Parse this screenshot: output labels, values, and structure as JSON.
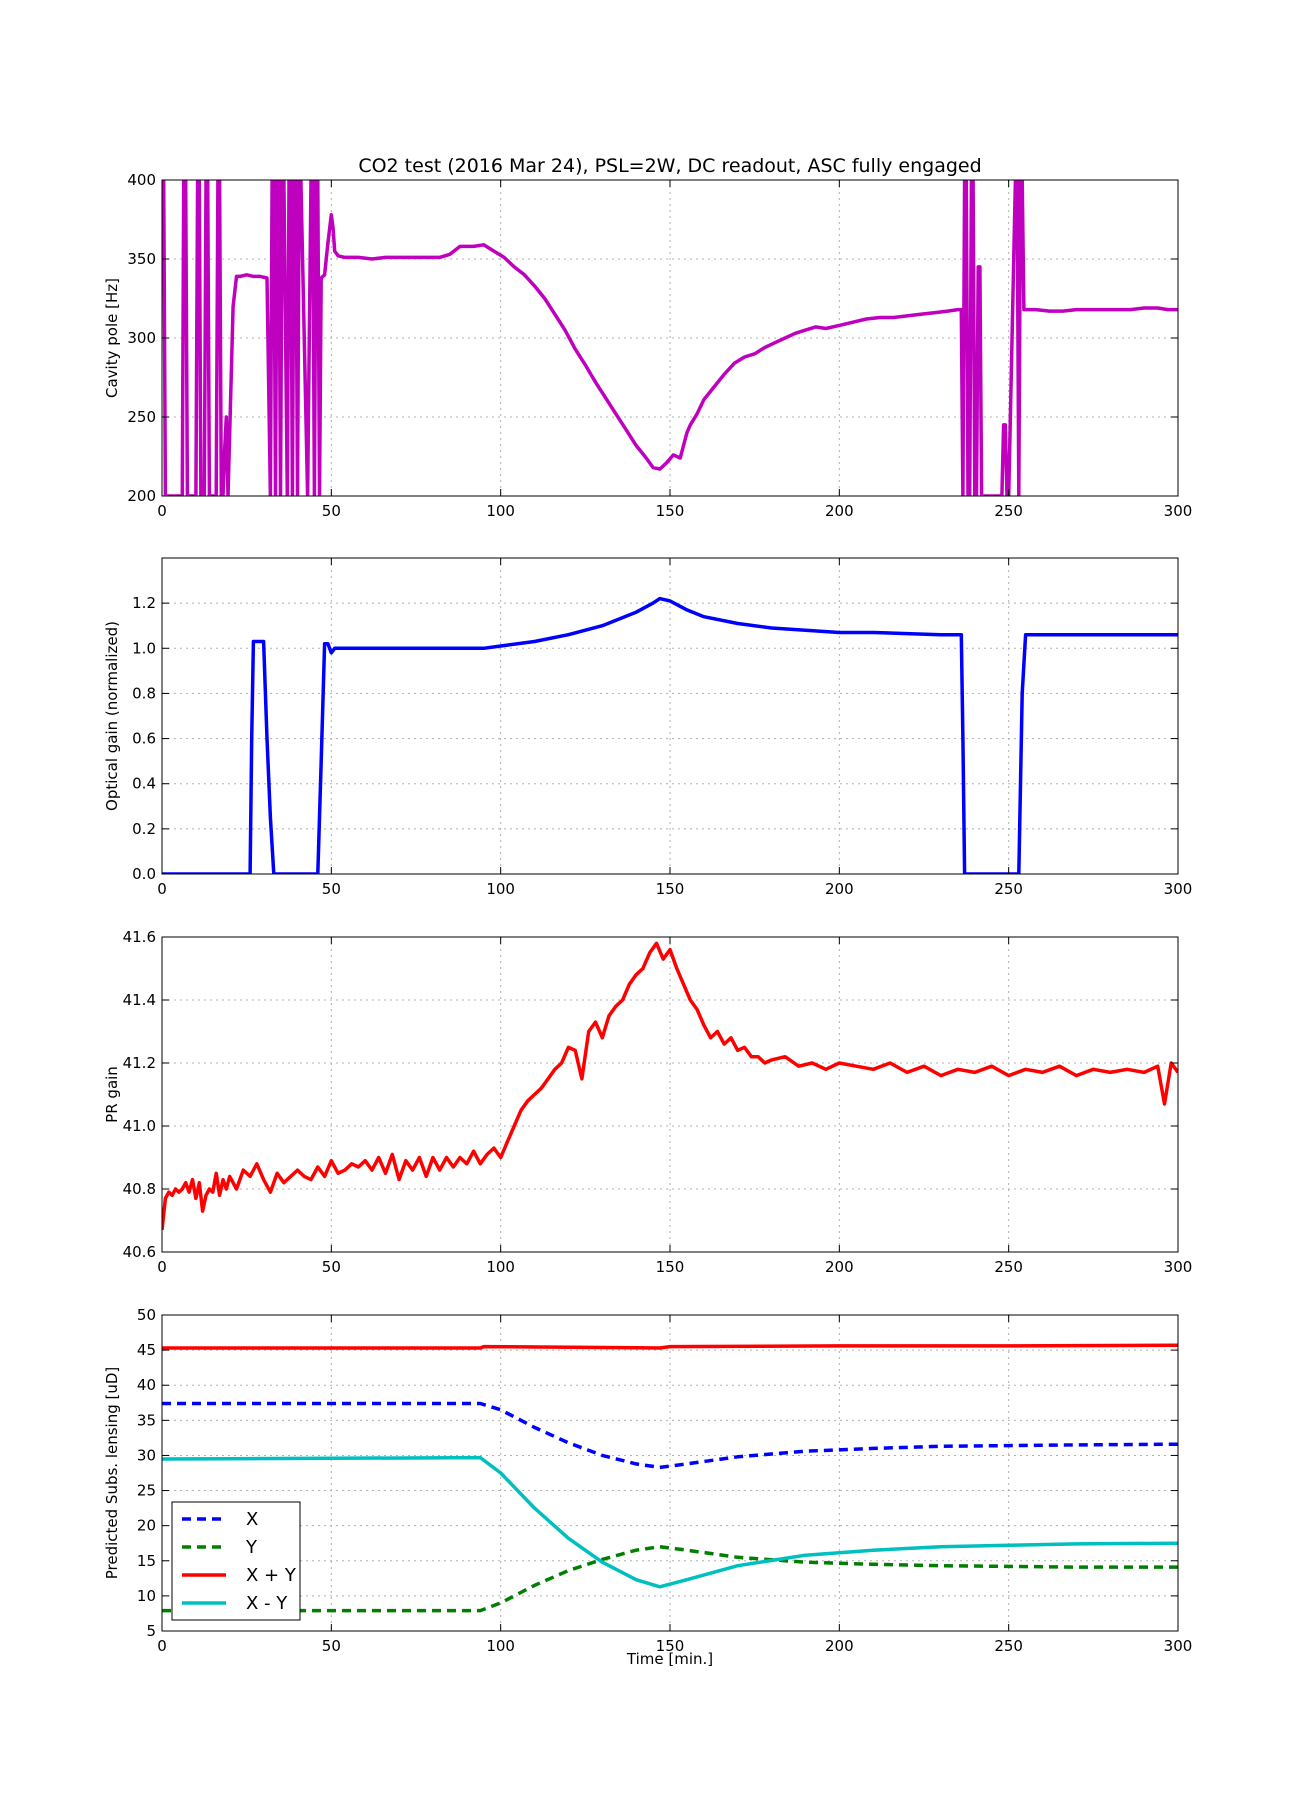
{
  "title": "CO2 test (2016 Mar 24), PSL=2W, DC readout, ASC fully engaged",
  "xlabel": "Time [min.]",
  "chart_data": [
    {
      "type": "line",
      "ylabel": "Cavity pole [Hz]",
      "xlim": [
        0,
        300
      ],
      "ylim": [
        200,
        400
      ],
      "xticks": [
        0,
        50,
        100,
        150,
        200,
        250,
        300
      ],
      "yticks": [
        200,
        250,
        300,
        350,
        400
      ],
      "grid": true,
      "series": [
        {
          "color": "#bf00bf",
          "x": [
            0,
            0.5,
            1,
            1.5,
            2,
            6,
            6.4,
            7,
            7.5,
            10,
            10.5,
            11,
            11.5,
            12.5,
            13,
            13.5,
            14,
            16,
            16.5,
            17,
            17.5,
            18,
            18.5,
            19,
            19.5,
            21,
            22,
            23,
            25,
            27,
            29,
            31,
            32,
            32.5,
            33,
            33.5,
            34,
            34.5,
            35,
            35.5,
            36,
            37,
            37.5,
            38,
            38.5,
            39,
            39.5,
            40,
            40.5,
            41,
            43,
            44,
            44.5,
            45,
            45.5,
            46,
            46.5,
            47,
            48,
            49,
            50,
            50.5,
            51,
            52,
            54,
            58,
            62,
            66,
            70,
            74,
            78,
            82,
            85,
            88,
            92,
            95,
            98,
            101,
            104,
            107,
            110,
            113,
            116,
            119,
            122,
            125,
            128,
            131,
            134,
            137,
            140,
            143,
            145,
            147,
            149,
            151,
            153,
            155,
            156,
            158,
            160,
            163,
            166,
            169,
            172,
            175,
            178,
            181,
            184,
            187,
            190,
            193,
            196,
            200,
            204,
            208,
            212,
            216,
            220,
            224,
            228,
            232,
            235,
            236,
            236.5,
            237,
            237.5,
            238,
            238.5,
            239,
            239.5,
            240,
            240.5,
            241,
            241.5,
            242,
            242.5,
            243,
            248,
            248.5,
            249,
            249.5,
            250,
            252,
            252.5,
            253,
            253.5,
            254,
            254.5,
            255,
            258,
            262,
            266,
            270,
            274,
            278,
            282,
            286,
            290,
            294,
            297,
            300
          ],
          "y": [
            400,
            400,
            200,
            200,
            200,
            200,
            400,
            400,
            200,
            200,
            400,
            400,
            200,
            200,
            400,
            400,
            200,
            200,
            400,
            400,
            200,
            200,
            230,
            250,
            200,
            320,
            339,
            339,
            340,
            339,
            339,
            338,
            200,
            400,
            400,
            200,
            400,
            400,
            200,
            400,
            400,
            200,
            400,
            400,
            200,
            400,
            400,
            200,
            400,
            400,
            200,
            400,
            400,
            200,
            400,
            400,
            200,
            338,
            340,
            360,
            378,
            370,
            355,
            352,
            351,
            351,
            350,
            351,
            351,
            351,
            351,
            351,
            353,
            358,
            358,
            359,
            355,
            351,
            345,
            340,
            333,
            325,
            315,
            305,
            293,
            283,
            272,
            262,
            252,
            242,
            232,
            224,
            218,
            217,
            221,
            226,
            224,
            240,
            245,
            252,
            261,
            269,
            277,
            284,
            288,
            290,
            294,
            297,
            300,
            303,
            305,
            307,
            306,
            308,
            310,
            312,
            313,
            313,
            314,
            315,
            316,
            317,
            318,
            318,
            200,
            400,
            400,
            200,
            200,
            400,
            400,
            200,
            200,
            345,
            345,
            200,
            200,
            200,
            200,
            245,
            245,
            200,
            200,
            400,
            400,
            200,
            400,
            400,
            318,
            318,
            318,
            317,
            317,
            318,
            318,
            318,
            318,
            318,
            319,
            319,
            318,
            318
          ]
        }
      ]
    },
    {
      "type": "line",
      "ylabel": "Optical gain (normalized)",
      "xlim": [
        0,
        300
      ],
      "ylim": [
        0,
        1.4
      ],
      "xticks": [
        0,
        50,
        100,
        150,
        200,
        250,
        300
      ],
      "yticks": [
        0.0,
        0.2,
        0.4,
        0.6,
        0.8,
        1.0,
        1.2
      ],
      "grid": true,
      "series": [
        {
          "color": "#0000ff",
          "x": [
            0,
            22,
            26,
            26.5,
            27,
            28,
            30,
            31,
            32,
            33,
            34,
            46,
            47,
            48,
            49,
            50,
            51,
            52,
            55,
            60,
            70,
            80,
            90,
            95,
            100,
            110,
            120,
            130,
            140,
            145,
            147,
            150,
            155,
            160,
            170,
            180,
            190,
            200,
            210,
            220,
            230,
            235,
            236,
            236.5,
            237,
            240,
            250,
            253,
            254,
            255,
            256,
            260,
            270,
            280,
            290,
            300
          ],
          "y": [
            0,
            0,
            0,
            0.6,
            1.03,
            1.03,
            1.03,
            0.6,
            0.25,
            0,
            0,
            0,
            0.5,
            1.02,
            1.02,
            0.98,
            1.0,
            1.0,
            1.0,
            1.0,
            1.0,
            1.0,
            1.0,
            1.0,
            1.01,
            1.03,
            1.06,
            1.1,
            1.16,
            1.2,
            1.22,
            1.21,
            1.17,
            1.14,
            1.11,
            1.09,
            1.08,
            1.07,
            1.07,
            1.065,
            1.06,
            1.06,
            1.06,
            0.6,
            0,
            0,
            0,
            0,
            0.8,
            1.06,
            1.06,
            1.06,
            1.06,
            1.06,
            1.06,
            1.06
          ]
        }
      ]
    },
    {
      "type": "line",
      "ylabel": "PR gain",
      "xlim": [
        0,
        300
      ],
      "ylim": [
        40.6,
        41.6
      ],
      "xticks": [
        0,
        50,
        100,
        150,
        200,
        250,
        300
      ],
      "yticks": [
        40.6,
        40.8,
        41.0,
        41.2,
        41.4,
        41.6
      ],
      "grid": true,
      "series": [
        {
          "color": "#ff0000",
          "x": [
            0,
            1,
            2,
            3,
            4,
            5,
            6,
            7,
            8,
            9,
            10,
            11,
            12,
            13,
            14,
            15,
            16,
            17,
            18,
            19,
            20,
            22,
            24,
            26,
            28,
            30,
            32,
            34,
            36,
            38,
            40,
            42,
            44,
            46,
            48,
            50,
            52,
            54,
            56,
            58,
            60,
            62,
            64,
            66,
            68,
            70,
            72,
            74,
            76,
            78,
            80,
            82,
            84,
            86,
            88,
            90,
            92,
            94,
            96,
            98,
            100,
            102,
            104,
            106,
            108,
            110,
            112,
            114,
            116,
            118,
            120,
            122,
            124,
            126,
            128,
            130,
            132,
            134,
            136,
            138,
            140,
            142,
            144,
            146,
            148,
            150,
            152,
            154,
            156,
            158,
            160,
            162,
            164,
            166,
            168,
            170,
            172,
            174,
            176,
            178,
            180,
            184,
            188,
            192,
            196,
            200,
            205,
            210,
            215,
            220,
            225,
            230,
            235,
            240,
            245,
            250,
            255,
            260,
            265,
            270,
            275,
            280,
            285,
            290,
            294,
            296,
            298,
            300
          ],
          "y": [
            40.67,
            40.77,
            40.79,
            40.78,
            40.8,
            40.79,
            40.8,
            40.82,
            40.79,
            40.83,
            40.77,
            40.82,
            40.73,
            40.78,
            40.8,
            40.79,
            40.85,
            40.78,
            40.83,
            40.8,
            40.84,
            40.8,
            40.86,
            40.84,
            40.88,
            40.83,
            40.79,
            40.85,
            40.82,
            40.84,
            40.86,
            40.84,
            40.83,
            40.87,
            40.84,
            40.89,
            40.85,
            40.86,
            40.88,
            40.87,
            40.89,
            40.86,
            40.9,
            40.85,
            40.91,
            40.83,
            40.89,
            40.86,
            40.9,
            40.84,
            40.9,
            40.86,
            40.9,
            40.87,
            40.9,
            40.88,
            40.92,
            40.88,
            40.91,
            40.93,
            40.9,
            40.95,
            41.0,
            41.05,
            41.08,
            41.1,
            41.12,
            41.15,
            41.18,
            41.2,
            41.25,
            41.24,
            41.15,
            41.3,
            41.33,
            41.28,
            41.35,
            41.38,
            41.4,
            41.45,
            41.48,
            41.5,
            41.55,
            41.58,
            41.53,
            41.56,
            41.5,
            41.45,
            41.4,
            41.37,
            41.32,
            41.28,
            41.3,
            41.26,
            41.28,
            41.24,
            41.25,
            41.22,
            41.22,
            41.2,
            41.21,
            41.22,
            41.19,
            41.2,
            41.18,
            41.2,
            41.19,
            41.18,
            41.2,
            41.17,
            41.19,
            41.16,
            41.18,
            41.17,
            41.19,
            41.16,
            41.18,
            41.17,
            41.19,
            41.16,
            41.18,
            41.17,
            41.18,
            41.17,
            41.19,
            41.07,
            41.2,
            41.17
          ]
        }
      ]
    },
    {
      "type": "line",
      "ylabel": "Predicted Subs. lensing [uD]",
      "xlabel": "Time [min.]",
      "xlim": [
        0,
        300
      ],
      "ylim": [
        5,
        50
      ],
      "xticks": [
        0,
        50,
        100,
        150,
        200,
        250,
        300
      ],
      "yticks": [
        5,
        10,
        15,
        20,
        25,
        30,
        35,
        40,
        45,
        50
      ],
      "grid": true,
      "legend": "lower-left",
      "series": [
        {
          "name": "X",
          "color": "#0000ff",
          "dashed": true,
          "x": [
            0,
            50,
            94,
            100,
            110,
            120,
            130,
            140,
            147,
            155,
            170,
            190,
            210,
            230,
            250,
            270,
            300
          ],
          "y": [
            37.4,
            37.4,
            37.4,
            36.5,
            34.0,
            31.8,
            30.0,
            28.8,
            28.3,
            28.8,
            29.8,
            30.6,
            31.0,
            31.3,
            31.4,
            31.5,
            31.6
          ]
        },
        {
          "name": "Y",
          "color": "#007f00",
          "dashed": true,
          "x": [
            0,
            50,
            94,
            100,
            110,
            120,
            130,
            140,
            147,
            155,
            170,
            190,
            210,
            230,
            250,
            270,
            300
          ],
          "y": [
            7.9,
            7.9,
            7.9,
            9.0,
            11.5,
            13.6,
            15.2,
            16.5,
            17.0,
            16.5,
            15.5,
            14.8,
            14.5,
            14.3,
            14.2,
            14.1,
            14.1
          ]
        },
        {
          "name": "X + Y",
          "color": "#ff0000",
          "dashed": false,
          "x": [
            0,
            50,
            94,
            95,
            147,
            150,
            200,
            250,
            300
          ],
          "y": [
            45.3,
            45.3,
            45.3,
            45.5,
            45.3,
            45.5,
            45.6,
            45.6,
            45.7
          ]
        },
        {
          "name": "X - Y",
          "color": "#00bfbf",
          "dashed": false,
          "x": [
            0,
            50,
            94,
            100,
            110,
            120,
            130,
            140,
            147,
            155,
            170,
            190,
            210,
            230,
            250,
            270,
            300
          ],
          "y": [
            29.5,
            29.6,
            29.7,
            27.5,
            22.5,
            18.2,
            14.8,
            12.3,
            11.3,
            12.3,
            14.3,
            15.8,
            16.5,
            17.0,
            17.2,
            17.4,
            17.5
          ]
        }
      ]
    }
  ]
}
